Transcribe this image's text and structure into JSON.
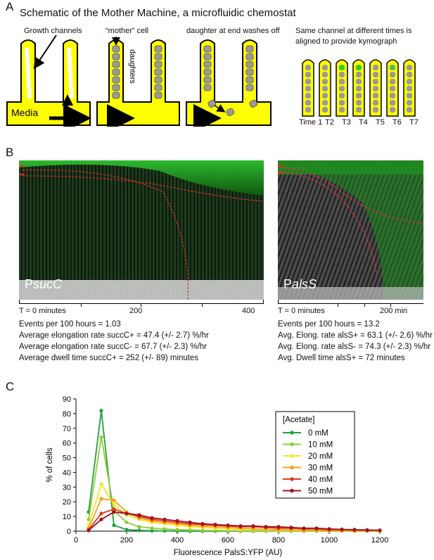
{
  "panelA": {
    "letter": "A",
    "title": "Schematic of the Mother Machine, a microfluidic chemostat",
    "labels": {
      "growth_channels": "Growth channels",
      "mother_cell": "“mother” cell",
      "daughters": "daughters",
      "washes_off": "daughter at end washes off",
      "kymo_line1": "Same channel at different times is",
      "kymo_line2": "aligned to provide kymograph",
      "media": "Media"
    },
    "time_labels": [
      "Time 1",
      "T2",
      "T3",
      "T4",
      "T5",
      "T6",
      "T7"
    ],
    "colors": {
      "channel": "#ffff00",
      "cell": "#9a9a9a",
      "gfp": "#2bd12b"
    }
  },
  "panelB": {
    "letter": "B",
    "left": {
      "label_prefix": "P",
      "label_gene": "sucC",
      "axis_start": "T = 0 minutes",
      "axis_mid": "200",
      "axis_end": "400",
      "stats": [
        "Events per 100 hours = 1.03",
        "Average elongation rate succC+ = 47.4 (+/- 2.7) %/hr",
        "Average elongation rate succC- = 67.7 (+/- 2.3) %/hr",
        "Average dwell time succC+ = 252 (+/- 89) minutes"
      ]
    },
    "right": {
      "label_prefix": "P",
      "label_gene": "alsS",
      "axis_start": "T = 0 minutes",
      "axis_end": "200 min",
      "stats": [
        "Events per 100 hours = 13.2",
        "Avg. Elong. rate alsS+ = 63.1 (+/- 2.6) %/hr",
        "Avg. Elong. rate alsS- = 74.3  (+/- 2.3) %/hr",
        "Avg. Dwell time alsS+ = 72 minutes"
      ]
    }
  },
  "panelC": {
    "letter": "C",
    "chart_data": {
      "type": "line",
      "xlabel": "Fluorescence PalsS:YFP (AU)",
      "ylabel": "% of cells",
      "xlim": [
        0,
        1200
      ],
      "ylim": [
        0,
        90
      ],
      "xticks": [
        0,
        200,
        400,
        600,
        800,
        1000,
        1200
      ],
      "yticks": [
        0,
        10,
        20,
        30,
        40,
        50,
        60,
        70,
        80,
        90
      ],
      "legend_title": "[Acetate]",
      "legend_position": "right",
      "grid": false,
      "x": [
        50,
        100,
        150,
        200,
        250,
        300,
        350,
        400,
        450,
        500,
        550,
        600,
        650,
        700,
        750,
        800,
        850,
        900,
        950,
        1000,
        1050,
        1100,
        1150,
        1200
      ],
      "series": [
        {
          "name": "0 mM",
          "color": "#1fa13a",
          "values": [
            13,
            82,
            4,
            1,
            0.5,
            0.3,
            0.2,
            0.1,
            0,
            0,
            0,
            0,
            0,
            0,
            0,
            0,
            0,
            0,
            0,
            0,
            0,
            0,
            0,
            0
          ]
        },
        {
          "name": "10 mM",
          "color": "#8fcc3c",
          "values": [
            8,
            64,
            14,
            6,
            3,
            2,
            1.5,
            1,
            0.8,
            0.5,
            0.4,
            0.3,
            0.2,
            0.1,
            0,
            0,
            0,
            0,
            0,
            0,
            0,
            0,
            0,
            0
          ]
        },
        {
          "name": "20 mM",
          "color": "#f5e626",
          "values": [
            4,
            32,
            18,
            11,
            8,
            6,
            5,
            4,
            3,
            2.5,
            2,
            1.5,
            1.2,
            1,
            0.8,
            0.6,
            0.5,
            0.4,
            0.3,
            0.2,
            0.2,
            0.1,
            0.1,
            0
          ]
        },
        {
          "name": "30 mM",
          "color": "#f0a418",
          "values": [
            2,
            22,
            21,
            13,
            9,
            7,
            6,
            5,
            4,
            3.5,
            3,
            2.5,
            2,
            1.5,
            1.2,
            1,
            0.8,
            0.6,
            0.5,
            0.4,
            0.3,
            0.2,
            0.2,
            0.1
          ]
        },
        {
          "name": "40 mM",
          "color": "#e03a1f",
          "values": [
            1,
            12,
            15,
            12,
            10,
            8,
            7,
            6,
            5,
            4.5,
            4,
            3.5,
            3,
            3,
            2.5,
            2,
            2,
            1.5,
            1.5,
            1,
            1,
            0.8,
            0.6,
            0.5
          ]
        },
        {
          "name": "50 mM",
          "color": "#a5121b",
          "values": [
            0.5,
            8,
            13,
            12,
            11,
            9,
            8,
            7,
            6,
            5,
            4.5,
            4,
            3.5,
            3.5,
            3,
            3,
            2.5,
            2,
            2,
            1.5,
            1.2,
            1,
            0.8,
            0.6
          ]
        }
      ]
    }
  }
}
